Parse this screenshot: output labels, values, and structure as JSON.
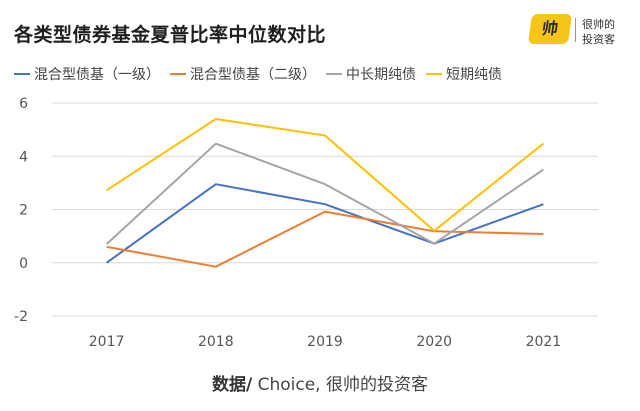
{
  "header": {
    "title": "各类型债券基金夏普比率中位数对比",
    "brand_logo": "帅",
    "brand_line1": "很帅的",
    "brand_line2": "投资客"
  },
  "footer": {
    "source_bold": "数据/",
    "source_rest": " Choice, 很帅的投资客"
  },
  "chart_data": {
    "type": "line",
    "categories": [
      "2017",
      "2018",
      "2019",
      "2020",
      "2021"
    ],
    "series": [
      {
        "name": "混合型债基（一级）",
        "color": "#4472c4",
        "values": [
          0.0,
          2.95,
          2.2,
          0.72,
          2.2
        ]
      },
      {
        "name": "混合型债基（二级）",
        "color": "#ed7d31",
        "values": [
          0.6,
          -0.15,
          1.92,
          1.18,
          1.08
        ]
      },
      {
        "name": "中长期纯债",
        "color": "#a5a5a5",
        "values": [
          0.7,
          4.47,
          2.95,
          0.72,
          3.5
        ]
      },
      {
        "name": "短期纯债",
        "color": "#ffc000",
        "values": [
          2.72,
          5.4,
          4.78,
          1.2,
          4.48
        ]
      }
    ],
    "ylim": [
      -2,
      6
    ],
    "yticks": [
      "-2",
      "0",
      "2",
      "4",
      "6"
    ],
    "grid": true,
    "legend_position": "top"
  }
}
